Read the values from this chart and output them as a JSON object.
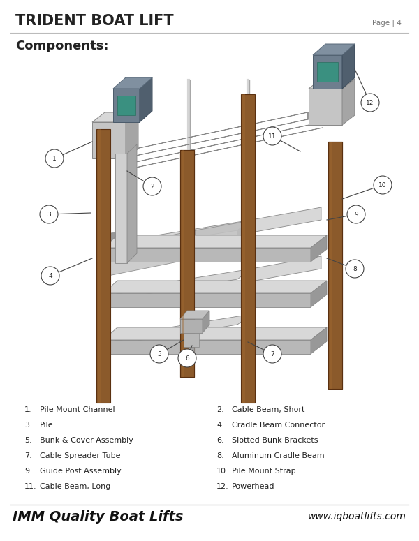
{
  "title": "TRIDENT BOAT LIFT",
  "page_text": "Page | 4",
  "components_header": "Components:",
  "footer_left": "IMM Quality Boat Lifts",
  "footer_right": "www.iqboatlifts.com",
  "bg_color": "#ffffff",
  "title_color": "#222222",
  "text_color": "#222222",
  "footer_color": "#111111",
  "parts_left": [
    [
      1,
      "Pile Mount Channel"
    ],
    [
      3,
      "Pile"
    ],
    [
      5,
      "Bunk & Cover Assembly"
    ],
    [
      7,
      "Cable Spreader Tube"
    ],
    [
      9,
      "Guide Post Assembly"
    ],
    [
      11,
      "Cable Beam, Long"
    ]
  ],
  "parts_right": [
    [
      2,
      "Cable Beam, Short"
    ],
    [
      4,
      "Cradle Beam Connector"
    ],
    [
      6,
      "Slotted Bunk Brackets"
    ],
    [
      8,
      "Aluminum Cradle Beam"
    ],
    [
      10,
      "Pile Mount Strap"
    ],
    [
      12,
      "Powerhead"
    ]
  ],
  "pile_color": "#8B5A2B",
  "pile_edge": "#5a3010",
  "pile_highlight": "#a06830",
  "metal_top": "#d8d8d8",
  "metal_front": "#b8b8b8",
  "metal_side": "#989898",
  "metal_edge": "#888888",
  "powerhead_face": "#6e7e8e",
  "powerhead_top": "#8090a0",
  "powerhead_side": "#505f6e",
  "powerhead_teal": "#3a9080",
  "callout_edge": "#444444",
  "callout_text": "#222222",
  "line_color": "#444444"
}
